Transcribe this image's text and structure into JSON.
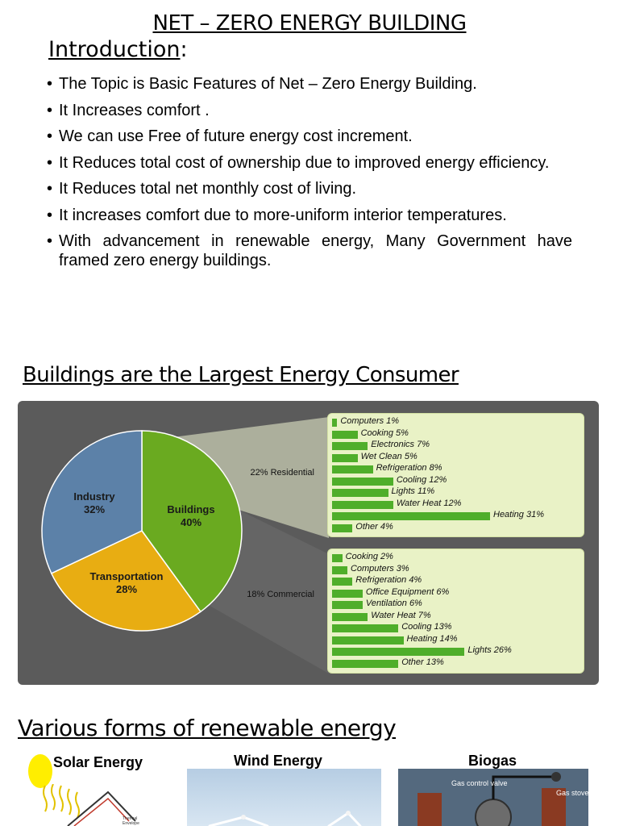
{
  "title": "NET – ZERO ENERGY BUILDING",
  "intro": {
    "heading": "Introduction",
    "heading_suffix": ":",
    "bullets": [
      "The Topic is Basic Features of Net – Zero Energy Building.",
      "It Increases comfort .",
      "We can use Free of future energy cost increment.",
      "It Reduces total cost of ownership due to improved  energy efficiency.",
      "It Reduces total net monthly cost of living.",
      "It increases comfort due to more-uniform interior temperatures.",
      "With advancement in renewable energy, Many Government have framed zero energy buildings."
    ]
  },
  "section2": {
    "heading": "Buildings are the Largest Energy Consumer"
  },
  "chart_data": {
    "type": "pie",
    "slices": [
      {
        "label": "Industry",
        "value_label": "32%",
        "value": 32,
        "color": "#5c81a8"
      },
      {
        "label": "Buildings",
        "value_label": "40%",
        "value": 40,
        "color": "#6aaa20"
      },
      {
        "label": "Transportation",
        "value_label": "28%",
        "value": 28,
        "color": "#e8ad12"
      }
    ],
    "residential": {
      "label": "22% Residential",
      "items": [
        {
          "name": "Computers 1%",
          "value": 1
        },
        {
          "name": "Cooking 5%",
          "value": 5
        },
        {
          "name": "Electronics 7%",
          "value": 7
        },
        {
          "name": "Wet Clean 5%",
          "value": 5
        },
        {
          "name": "Refrigeration 8%",
          "value": 8
        },
        {
          "name": "Cooling 12%",
          "value": 12
        },
        {
          "name": "Lights 11%",
          "value": 11
        },
        {
          "name": "Water Heat 12%",
          "value": 12
        },
        {
          "name": "Heating 31%",
          "value": 31
        },
        {
          "name": "Other 4%",
          "value": 4
        }
      ]
    },
    "commercial": {
      "label": "18% Commercial",
      "items": [
        {
          "name": "Cooking 2%",
          "value": 2
        },
        {
          "name": "Computers 3%",
          "value": 3
        },
        {
          "name": "Refrigeration 4%",
          "value": 4
        },
        {
          "name": "Office Equipment 6%",
          "value": 6
        },
        {
          "name": "Ventilation 6%",
          "value": 6
        },
        {
          "name": "Water Heat 7%",
          "value": 7
        },
        {
          "name": "Cooling 13%",
          "value": 13
        },
        {
          "name": "Heating 14%",
          "value": 14
        },
        {
          "name": "Lights 26%",
          "value": 26
        },
        {
          "name": "Other 13%",
          "value": 13
        }
      ]
    },
    "bar_color": "#4fae2a",
    "panel_color": "#5b5b5b"
  },
  "section3": {
    "heading": "Various forms of renewable energy",
    "items": [
      {
        "label": "Solar Energy",
        "image_text": [
          "Thermal",
          "Envelope"
        ]
      },
      {
        "label": "Wind Energy"
      },
      {
        "label": "Biogas",
        "image_text": [
          "Gas control valve",
          "Gas stove"
        ]
      }
    ]
  }
}
